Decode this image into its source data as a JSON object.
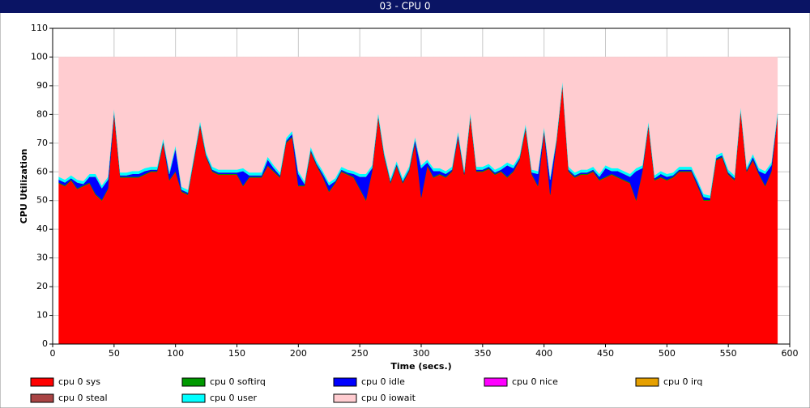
{
  "chart_data": {
    "type": "stacked_area",
    "title": "03 - CPU 0",
    "x_label": "Time (secs.)",
    "y_label": "CPU Utilization",
    "xlim": [
      0,
      600
    ],
    "xticks": [
      0,
      50,
      100,
      150,
      200,
      250,
      300,
      350,
      400,
      450,
      500,
      550,
      600
    ],
    "ylim": [
      0,
      110
    ],
    "yticks": [
      0,
      10,
      20,
      30,
      40,
      50,
      60,
      70,
      80,
      90,
      100,
      110
    ],
    "grid": true,
    "legend": "bottom",
    "x": [
      5,
      10,
      15,
      20,
      25,
      30,
      35,
      40,
      45,
      50,
      55,
      60,
      65,
      70,
      75,
      80,
      85,
      90,
      95,
      100,
      105,
      110,
      115,
      120,
      125,
      130,
      135,
      140,
      145,
      150,
      155,
      160,
      165,
      170,
      175,
      180,
      185,
      190,
      195,
      200,
      205,
      210,
      215,
      220,
      225,
      230,
      235,
      240,
      245,
      250,
      255,
      260,
      265,
      270,
      275,
      280,
      285,
      290,
      295,
      300,
      305,
      310,
      315,
      320,
      325,
      330,
      335,
      340,
      345,
      350,
      355,
      360,
      365,
      370,
      375,
      380,
      385,
      390,
      395,
      400,
      405,
      410,
      415,
      420,
      425,
      430,
      435,
      440,
      445,
      450,
      455,
      460,
      465,
      470,
      475,
      480,
      485,
      490,
      495,
      500,
      505,
      510,
      515,
      520,
      525,
      530,
      535,
      540,
      545,
      550,
      555,
      560,
      565,
      570,
      575,
      580,
      585,
      590
    ],
    "series": [
      {
        "name": "cpu 0 sys",
        "color": "#ff0000",
        "values": [
          56,
          55,
          57,
          54,
          55,
          56,
          52,
          50,
          54,
          80,
          58,
          58,
          58,
          58,
          59,
          60,
          60,
          70,
          57,
          60,
          53,
          52,
          64,
          76,
          65,
          60,
          59,
          59,
          59,
          59,
          55,
          58,
          58,
          58,
          62,
          60,
          58,
          70,
          72,
          55,
          55,
          67,
          62,
          58,
          53,
          56,
          60,
          59,
          58,
          54,
          50,
          60,
          79,
          65,
          56,
          62,
          56,
          60,
          70,
          51,
          62,
          58,
          59,
          58,
          60,
          72,
          59,
          79,
          60,
          60,
          61,
          59,
          60,
          58,
          60,
          64,
          75,
          59,
          55,
          74,
          52,
          70,
          90,
          60,
          58,
          59,
          59,
          60,
          57,
          58,
          59,
          58,
          57,
          56,
          50,
          60,
          76,
          57,
          58,
          57,
          58,
          60,
          60,
          60,
          55,
          50,
          50,
          64,
          65,
          59,
          57,
          81,
          60,
          64,
          59,
          55,
          60,
          79
        ]
      },
      {
        "name": "cpu 0 softirq",
        "color": "#009900",
        "values": [
          0.3,
          0.3,
          0.3,
          0.3,
          0.3,
          0.3,
          0.3,
          0.3,
          0.3,
          0.3,
          0.3,
          0.3,
          0.3,
          0.3,
          0.3,
          0.3,
          0.3,
          0.3,
          0.3,
          0.3,
          0.3,
          0.3,
          0.3,
          0.3,
          0.3,
          0.3,
          0.3,
          0.3,
          0.3,
          0.3,
          0.3,
          0.3,
          0.3,
          0.3,
          0.3,
          0.3,
          0.3,
          0.3,
          0.3,
          0.3,
          0.3,
          0.3,
          0.3,
          0.3,
          0.3,
          0.3,
          0.3,
          0.3,
          0.3,
          0.3,
          0.3,
          0.3,
          0.3,
          0.3,
          0.3,
          0.3,
          0.3,
          0.3,
          0.3,
          0.3,
          0.3,
          0.3,
          0.3,
          0.3,
          0.3,
          0.3,
          0.3,
          0.3,
          0.3,
          0.3,
          0.3,
          0.3,
          0.3,
          0.3,
          0.3,
          0.3,
          0.3,
          0.3,
          0.3,
          0.3,
          0.3,
          0.3,
          0.3,
          0.3,
          0.3,
          0.3,
          0.3,
          0.3,
          0.3,
          0.3,
          0.3,
          0.3,
          0.3,
          0.3,
          0.3,
          0.3,
          0.3,
          0.3,
          0.3,
          0.3,
          0.3,
          0.3,
          0.3,
          0.3,
          0.3,
          0.3,
          0.3,
          0.3,
          0.3,
          0.3,
          0.3,
          0.3,
          0.3,
          0.3,
          0.3,
          0.3,
          0.3,
          0.3
        ]
      },
      {
        "name": "cpu 0 idle",
        "color": "#0000ff",
        "values": [
          1,
          1,
          0.5,
          2,
          0.5,
          2,
          6,
          4,
          3,
          1,
          0.5,
          0.5,
          1,
          1,
          1,
          0.5,
          0.5,
          0.5,
          2,
          8,
          0.5,
          0.5,
          0.5,
          0.5,
          0.5,
          0.5,
          0.5,
          0.5,
          0.5,
          0.5,
          5,
          0.5,
          0.5,
          0.5,
          2,
          1,
          0.5,
          0.5,
          1,
          4,
          0.5,
          0.5,
          0.5,
          1,
          2,
          0.5,
          0.5,
          0.5,
          1,
          4,
          8,
          1,
          0.5,
          0.5,
          0.5,
          0.5,
          0.5,
          0.5,
          1,
          10,
          1,
          2,
          1,
          1,
          0.5,
          1,
          0.5,
          0.5,
          0.5,
          0.5,
          0.5,
          0.5,
          0.5,
          4,
          1,
          0.5,
          0.5,
          0.5,
          4,
          0.5,
          5,
          0.5,
          0.5,
          0.5,
          0.5,
          0.5,
          0.5,
          0.5,
          1,
          3,
          1,
          2,
          2,
          2,
          10,
          1,
          0.5,
          0.5,
          1,
          1,
          0.5,
          0.5,
          0.5,
          0.5,
          1,
          1,
          0.5,
          0.5,
          0.5,
          0.5,
          0.5,
          0.5,
          0.5,
          1,
          1,
          4,
          2,
          0.5
        ]
      },
      {
        "name": "cpu 0 nice",
        "color": "#ff00ff",
        "values": [
          0,
          0,
          0,
          0,
          0,
          0,
          0,
          0,
          0,
          0,
          0,
          0,
          0,
          0,
          0,
          0,
          0,
          0,
          0,
          0,
          0,
          0,
          0,
          0,
          0,
          0,
          0,
          0,
          0,
          0,
          0,
          0,
          0,
          0,
          0,
          0,
          0,
          0,
          0,
          0,
          0,
          0,
          0,
          0,
          0,
          0,
          0,
          0,
          0,
          0,
          0,
          0,
          0,
          0,
          0,
          0,
          0,
          0,
          0,
          0,
          0,
          0,
          0,
          0,
          0,
          0,
          0,
          0,
          0,
          0,
          0,
          0,
          0,
          0,
          0,
          0,
          0,
          0,
          0,
          0,
          0,
          0,
          0,
          0,
          0,
          0,
          0,
          0,
          0,
          0,
          0,
          0,
          0,
          0,
          0,
          0,
          0,
          0,
          0,
          0,
          0,
          0,
          0,
          0,
          0,
          0,
          0,
          0,
          0,
          0,
          0,
          0,
          0,
          0,
          0,
          0,
          0,
          0
        ]
      },
      {
        "name": "cpu 0 irq",
        "color": "#e6a000",
        "values": [
          0,
          0,
          0,
          0,
          0,
          0,
          0,
          0,
          0,
          0,
          0,
          0,
          0,
          0,
          0,
          0,
          0,
          0,
          0,
          0,
          0,
          0,
          0,
          0,
          0,
          0,
          0,
          0,
          0,
          0,
          0,
          0,
          0,
          0,
          0,
          0,
          0,
          0,
          0,
          0,
          0,
          0,
          0,
          0,
          0,
          0,
          0,
          0,
          0,
          0,
          0,
          0,
          0,
          0,
          0,
          0,
          0,
          0,
          0,
          0,
          0,
          0,
          0,
          0,
          0,
          0,
          0,
          0,
          0,
          0,
          0,
          0,
          0,
          0,
          0,
          0,
          0,
          0,
          0,
          0,
          0,
          0,
          0,
          0,
          0,
          0,
          0,
          0,
          0,
          0,
          0,
          0,
          0,
          0,
          0,
          0,
          0,
          0,
          0,
          0,
          0,
          0,
          0,
          0,
          0,
          0,
          0,
          0,
          0,
          0,
          0,
          0,
          0,
          0,
          0,
          0,
          0,
          0
        ]
      },
      {
        "name": "cpu 0 steal",
        "color": "#a94444",
        "values": [
          0,
          0,
          0,
          0,
          0,
          0,
          0,
          0,
          0,
          0,
          0,
          0,
          0,
          0,
          0,
          0,
          0,
          0,
          0,
          0,
          0,
          0,
          0,
          0,
          0,
          0,
          0,
          0,
          0,
          0,
          0,
          0,
          0,
          0,
          0,
          0,
          0,
          0,
          0,
          0,
          0,
          0,
          0,
          0,
          0,
          0,
          0,
          0,
          0,
          0,
          0,
          0,
          0,
          0,
          0,
          0,
          0,
          0,
          0,
          0,
          0,
          0,
          0,
          0,
          0,
          0,
          0,
          0,
          0,
          0,
          0,
          0,
          0,
          0,
          0,
          0,
          0,
          0,
          0,
          0,
          0,
          0,
          0,
          0,
          0,
          0,
          0,
          0,
          0,
          0,
          0,
          0,
          0,
          0,
          0,
          0,
          0,
          0,
          0,
          0,
          0,
          0,
          0,
          0,
          0,
          0,
          0,
          0,
          0,
          0,
          0,
          0,
          0,
          0,
          0,
          0,
          0,
          0
        ]
      },
      {
        "name": "cpu 0 user",
        "color": "#00ffff",
        "values": [
          1,
          1,
          1,
          1,
          1,
          1,
          1,
          1,
          1,
          1,
          1,
          1,
          1,
          1,
          1,
          1,
          1,
          1,
          1,
          1,
          1,
          1,
          1,
          1,
          1,
          1,
          1,
          1,
          1,
          1,
          1,
          1,
          1,
          1,
          1,
          1,
          1,
          1,
          1,
          1,
          1,
          1,
          1,
          1,
          1,
          1,
          1,
          1,
          1,
          1,
          1,
          1,
          1,
          1,
          1,
          1,
          1,
          1,
          1,
          1,
          1,
          1,
          1,
          1,
          1,
          1,
          1,
          1,
          1,
          1,
          1,
          1,
          1,
          1,
          1,
          1,
          1,
          1,
          1,
          1,
          1,
          1,
          1,
          1,
          1,
          1,
          1,
          1,
          1,
          1,
          1,
          1,
          1,
          1,
          1,
          1,
          1,
          1,
          1,
          1,
          1,
          1,
          1,
          1,
          1,
          1,
          1,
          1,
          1,
          1,
          1,
          1,
          1,
          1,
          1,
          1,
          1,
          1
        ]
      },
      {
        "name": "cpu 0 iowait",
        "color": "#ffccd0",
        "values": [
          41.7,
          42.7,
          41.2,
          42.7,
          43.2,
          40.7,
          40.7,
          44.7,
          41.7,
          17.7,
          40.2,
          40.2,
          39.7,
          39.7,
          38.7,
          38.2,
          38.2,
          28.2,
          39.7,
          30.7,
          45.2,
          46.2,
          34.2,
          22.2,
          33.2,
          38.2,
          39.2,
          39.2,
          39.2,
          39.2,
          38.7,
          40.2,
          40.2,
          40.2,
          34.7,
          37.7,
          40.2,
          28.2,
          25.7,
          39.7,
          43.2,
          31.2,
          36.2,
          39.7,
          43.7,
          42.2,
          38.2,
          39.2,
          39.7,
          40.7,
          40.7,
          37.7,
          19.2,
          33.2,
          42.2,
          36.2,
          42.2,
          38.2,
          27.7,
          37.7,
          35.7,
          38.7,
          38.7,
          39.7,
          38.2,
          25.7,
          39.2,
          19.2,
          38.2,
          38.2,
          37.2,
          39.2,
          38.2,
          36.7,
          37.7,
          34.2,
          23.2,
          39.2,
          39.7,
          24.2,
          41.7,
          28.2,
          8.2,
          38.2,
          40.2,
          39.2,
          39.2,
          38.2,
          40.7,
          37.7,
          38.7,
          38.7,
          39.7,
          40.7,
          38.7,
          37.7,
          22.2,
          41.2,
          39.7,
          40.7,
          40.2,
          38.2,
          38.2,
          38.2,
          42.7,
          47.7,
          48.2,
          34.2,
          33.2,
          39.2,
          41.2,
          17.2,
          38.2,
          33.7,
          38.7,
          39.7,
          36.7,
          19.2
        ]
      }
    ]
  }
}
